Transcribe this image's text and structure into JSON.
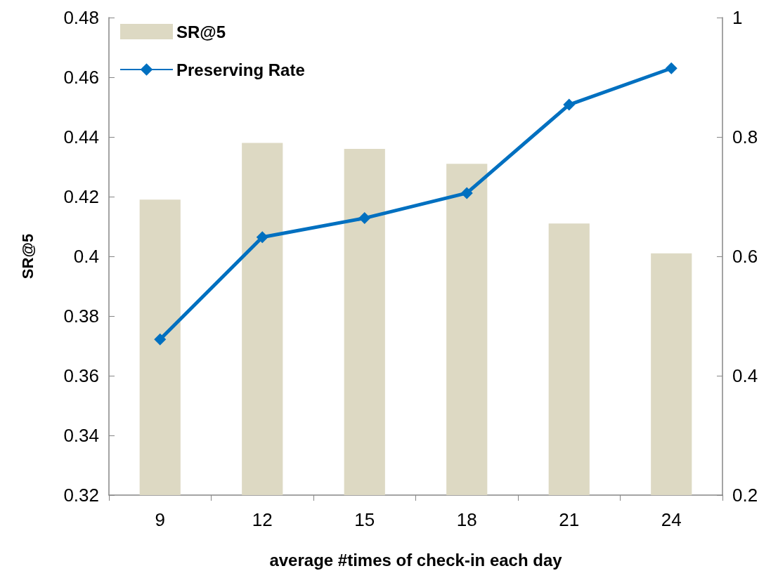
{
  "chart_data": {
    "type": "bar",
    "xlabel": "average #times of check-in each day",
    "ylabel": "SR@5",
    "categories": [
      "9",
      "12",
      "15",
      "18",
      "21",
      "24"
    ],
    "series": [
      {
        "name": "SR@5",
        "color": "#ddd9c3",
        "values": [
          0.419,
          0.438,
          0.436,
          0.431,
          0.411,
          0.401
        ]
      },
      {
        "name": "Preserving Rate",
        "type": "line",
        "axis": "y2",
        "color": "#0070c0",
        "marker": "diamond",
        "values": [
          0.461,
          0.632,
          0.664,
          0.706,
          0.854,
          0.915
        ]
      }
    ],
    "ylim": [
      0.32,
      0.48
    ],
    "yticks": [
      0.32,
      0.34,
      0.36,
      0.38,
      0.4,
      0.42,
      0.44,
      0.46,
      0.48
    ],
    "y2lim": [
      0.2,
      1
    ],
    "y2ticks": [
      0.2,
      0.4,
      0.6,
      0.8,
      1
    ],
    "grid": false,
    "legend": "top left"
  }
}
